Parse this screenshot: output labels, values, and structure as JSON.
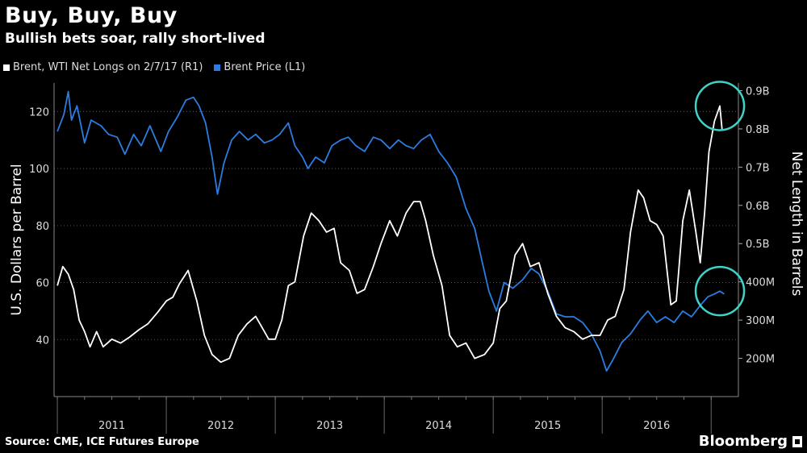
{
  "header": {
    "title": "Buy, Buy, Buy",
    "subtitle": "Bullish bets soar, rally short-lived"
  },
  "legend": {
    "white_label": "Brent, WTI Net Longs on 2/7/17 (R1)",
    "blue_label": "Brent Price (L1)"
  },
  "footer": {
    "source": "Source: CME, ICE Futures Europe",
    "brand": "Bloomberg"
  },
  "colors": {
    "background": "#000000",
    "net_longs": "#ffffff",
    "brent": "#2b7de0",
    "highlight": "#3fd3c8"
  },
  "chart_data": {
    "type": "line",
    "x_categories": [
      "2011",
      "2012",
      "2013",
      "2014",
      "2015",
      "2016"
    ],
    "ylabel_left": "U.S. Dollars per Barrel",
    "ylabel_right": "Net Length in Barrels",
    "left_ticks": [
      "40",
      "60",
      "80",
      "100",
      "120"
    ],
    "right_ticks": [
      "200M",
      "300M",
      "400M",
      "0.5B",
      "0.6B",
      "0.7B",
      "0.8B",
      "0.9B"
    ],
    "left_ylim": [
      20,
      130
    ],
    "right_ylim": [
      100,
      920
    ],
    "legend_position": "top-left",
    "series": [
      {
        "name": "Brent Price (L1)",
        "axis": "left",
        "points": [
          [
            2011.0,
            113
          ],
          [
            2011.06,
            119
          ],
          [
            2011.1,
            127
          ],
          [
            2011.13,
            117
          ],
          [
            2011.18,
            122
          ],
          [
            2011.25,
            109
          ],
          [
            2011.31,
            117
          ],
          [
            2011.4,
            115
          ],
          [
            2011.47,
            112
          ],
          [
            2011.55,
            111
          ],
          [
            2011.62,
            105
          ],
          [
            2011.7,
            112
          ],
          [
            2011.77,
            108
          ],
          [
            2011.85,
            115
          ],
          [
            2011.95,
            106
          ],
          [
            2012.02,
            113
          ],
          [
            2012.1,
            118
          ],
          [
            2012.18,
            124
          ],
          [
            2012.25,
            125
          ],
          [
            2012.3,
            122
          ],
          [
            2012.36,
            116
          ],
          [
            2012.42,
            104
          ],
          [
            2012.47,
            91
          ],
          [
            2012.53,
            102
          ],
          [
            2012.6,
            110
          ],
          [
            2012.67,
            113
          ],
          [
            2012.75,
            110
          ],
          [
            2012.82,
            112
          ],
          [
            2012.9,
            109
          ],
          [
            2012.97,
            110
          ],
          [
            2013.04,
            112
          ],
          [
            2013.12,
            116
          ],
          [
            2013.18,
            108
          ],
          [
            2013.25,
            104
          ],
          [
            2013.3,
            100
          ],
          [
            2013.37,
            104
          ],
          [
            2013.45,
            102
          ],
          [
            2013.52,
            108
          ],
          [
            2013.6,
            110
          ],
          [
            2013.67,
            111
          ],
          [
            2013.74,
            108
          ],
          [
            2013.82,
            106
          ],
          [
            2013.9,
            111
          ],
          [
            2013.97,
            110
          ],
          [
            2014.05,
            107
          ],
          [
            2014.13,
            110
          ],
          [
            2014.2,
            108
          ],
          [
            2014.27,
            107
          ],
          [
            2014.34,
            110
          ],
          [
            2014.42,
            112
          ],
          [
            2014.5,
            106
          ],
          [
            2014.58,
            102
          ],
          [
            2014.66,
            97
          ],
          [
            2014.75,
            86
          ],
          [
            2014.83,
            79
          ],
          [
            2014.9,
            67
          ],
          [
            2014.96,
            57
          ],
          [
            2015.03,
            50
          ],
          [
            2015.1,
            60
          ],
          [
            2015.18,
            58
          ],
          [
            2015.27,
            61
          ],
          [
            2015.35,
            65
          ],
          [
            2015.42,
            63
          ],
          [
            2015.5,
            57
          ],
          [
            2015.58,
            49
          ],
          [
            2015.66,
            48
          ],
          [
            2015.74,
            48
          ],
          [
            2015.82,
            46
          ],
          [
            2015.9,
            42
          ],
          [
            2015.98,
            36
          ],
          [
            2016.04,
            29
          ],
          [
            2016.1,
            33
          ],
          [
            2016.18,
            39
          ],
          [
            2016.26,
            42
          ],
          [
            2016.35,
            47
          ],
          [
            2016.42,
            50
          ],
          [
            2016.5,
            46
          ],
          [
            2016.58,
            48
          ],
          [
            2016.66,
            46
          ],
          [
            2016.74,
            50
          ],
          [
            2016.82,
            48
          ],
          [
            2016.9,
            52
          ],
          [
            2016.97,
            55
          ],
          [
            2017.03,
            56
          ],
          [
            2017.08,
            57
          ],
          [
            2017.12,
            56
          ]
        ]
      },
      {
        "name": "Brent, WTI Net Longs on 2/7/17 (R1)",
        "axis": "right",
        "points": [
          [
            2011.0,
            390
          ],
          [
            2011.05,
            440
          ],
          [
            2011.1,
            420
          ],
          [
            2011.15,
            380
          ],
          [
            2011.2,
            300
          ],
          [
            2011.25,
            270
          ],
          [
            2011.3,
            230
          ],
          [
            2011.36,
            270
          ],
          [
            2011.42,
            230
          ],
          [
            2011.5,
            250
          ],
          [
            2011.58,
            240
          ],
          [
            2011.66,
            255
          ],
          [
            2011.75,
            275
          ],
          [
            2011.83,
            290
          ],
          [
            2011.92,
            320
          ],
          [
            2012.0,
            350
          ],
          [
            2012.06,
            360
          ],
          [
            2012.12,
            395
          ],
          [
            2012.2,
            430
          ],
          [
            2012.28,
            350
          ],
          [
            2012.35,
            260
          ],
          [
            2012.42,
            210
          ],
          [
            2012.5,
            190
          ],
          [
            2012.58,
            200
          ],
          [
            2012.66,
            260
          ],
          [
            2012.74,
            290
          ],
          [
            2012.82,
            310
          ],
          [
            2012.88,
            280
          ],
          [
            2012.94,
            250
          ],
          [
            2013.0,
            250
          ],
          [
            2013.06,
            300
          ],
          [
            2013.12,
            390
          ],
          [
            2013.18,
            400
          ],
          [
            2013.26,
            520
          ],
          [
            2013.33,
            580
          ],
          [
            2013.4,
            560
          ],
          [
            2013.47,
            530
          ],
          [
            2013.54,
            540
          ],
          [
            2013.6,
            450
          ],
          [
            2013.68,
            430
          ],
          [
            2013.75,
            370
          ],
          [
            2013.82,
            380
          ],
          [
            2013.9,
            440
          ],
          [
            2013.97,
            500
          ],
          [
            2014.05,
            560
          ],
          [
            2014.12,
            520
          ],
          [
            2014.2,
            580
          ],
          [
            2014.27,
            610
          ],
          [
            2014.33,
            610
          ],
          [
            2014.38,
            560
          ],
          [
            2014.45,
            470
          ],
          [
            2014.53,
            390
          ],
          [
            2014.6,
            260
          ],
          [
            2014.67,
            230
          ],
          [
            2014.75,
            240
          ],
          [
            2014.83,
            200
          ],
          [
            2014.92,
            210
          ],
          [
            2015.0,
            240
          ],
          [
            2015.06,
            330
          ],
          [
            2015.12,
            350
          ],
          [
            2015.2,
            470
          ],
          [
            2015.27,
            500
          ],
          [
            2015.34,
            440
          ],
          [
            2015.42,
            450
          ],
          [
            2015.5,
            370
          ],
          [
            2015.58,
            310
          ],
          [
            2015.66,
            280
          ],
          [
            2015.74,
            270
          ],
          [
            2015.82,
            250
          ],
          [
            2015.9,
            260
          ],
          [
            2015.98,
            260
          ],
          [
            2016.05,
            300
          ],
          [
            2016.12,
            310
          ],
          [
            2016.2,
            380
          ],
          [
            2016.26,
            530
          ],
          [
            2016.33,
            640
          ],
          [
            2016.38,
            620
          ],
          [
            2016.44,
            560
          ],
          [
            2016.5,
            550
          ],
          [
            2016.56,
            520
          ],
          [
            2016.63,
            340
          ],
          [
            2016.68,
            350
          ],
          [
            2016.74,
            560
          ],
          [
            2016.8,
            640
          ],
          [
            2016.86,
            530
          ],
          [
            2016.9,
            450
          ],
          [
            2016.94,
            580
          ],
          [
            2016.98,
            740
          ],
          [
            2017.03,
            820
          ],
          [
            2017.08,
            860
          ],
          [
            2017.1,
            800
          ]
        ]
      }
    ],
    "annotations": [
      "circle around latest net longs peak",
      "circle around latest Brent price"
    ]
  }
}
